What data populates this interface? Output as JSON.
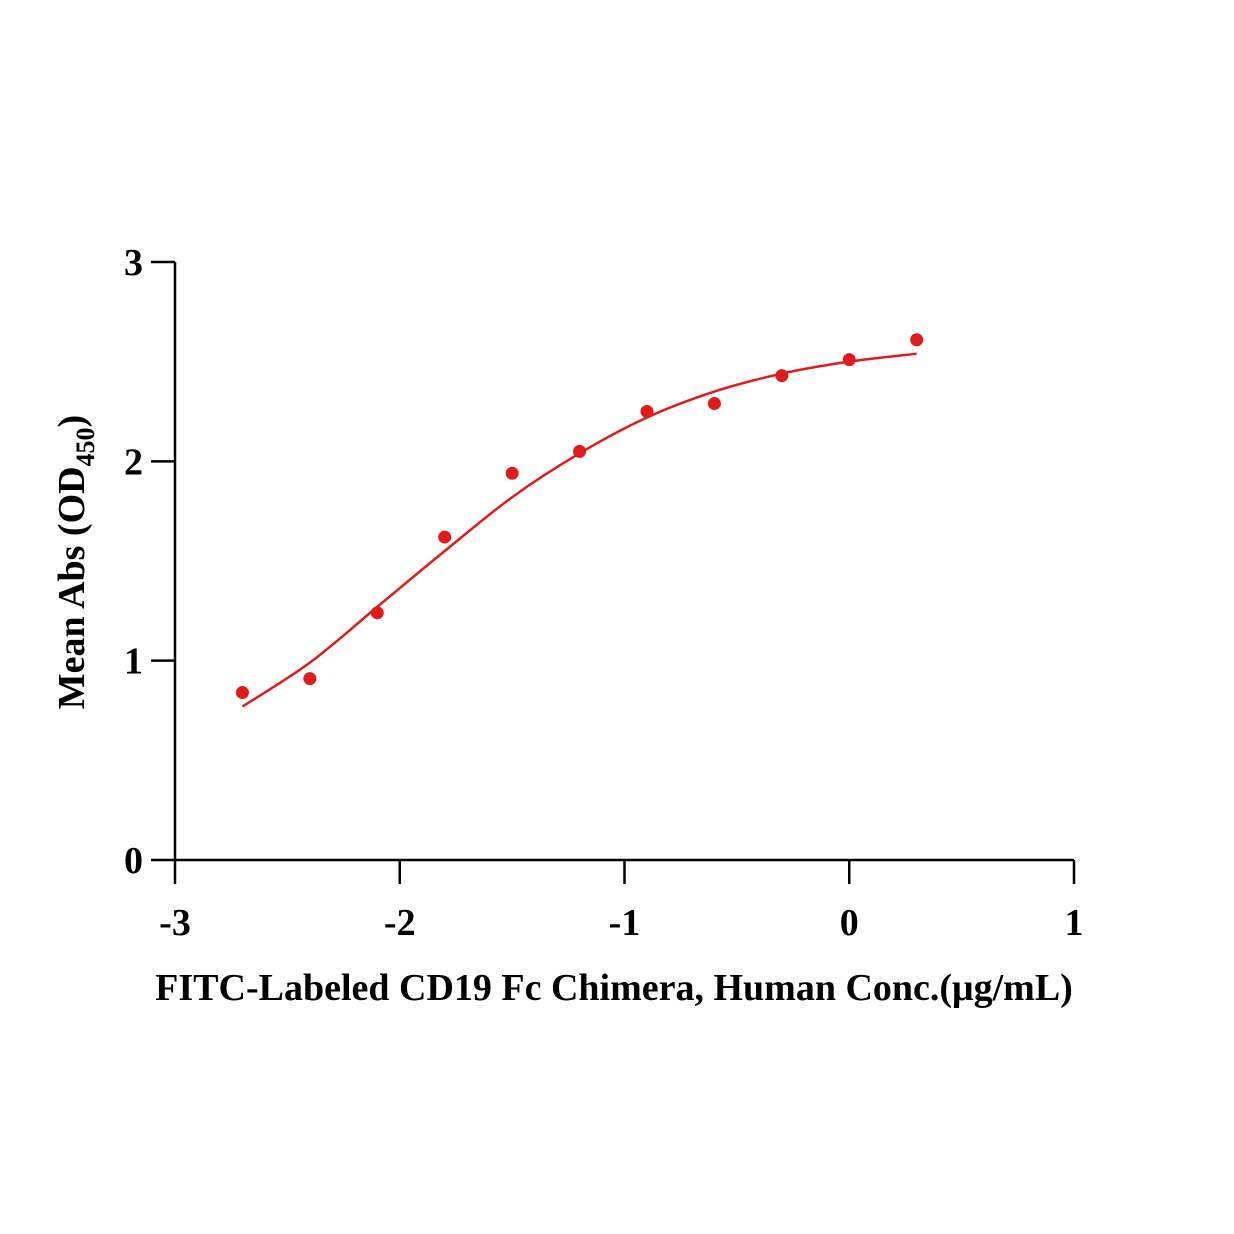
{
  "chart_data": {
    "type": "scatter",
    "title": "",
    "xlabel": "FITC-Labeled CD19 Fc Chimera, Human Conc.(μg/mL)",
    "ylabel": {
      "main": "Mean Abs (OD",
      "subscript": "450",
      "close": ")"
    },
    "xlim": [
      -3,
      1
    ],
    "ylim": [
      0,
      3
    ],
    "x_ticks": [
      -3,
      -2,
      -1,
      0,
      1
    ],
    "y_ticks": [
      0,
      1,
      2,
      3
    ],
    "x_tick_labels": [
      "-3",
      "-2",
      "-1",
      "0",
      "1"
    ],
    "y_tick_labels": [
      "0",
      "1",
      "2",
      "3"
    ],
    "grid": false,
    "legend": "none",
    "color": "#e31a1a",
    "series": [
      {
        "points": [
          {
            "x": -2.7,
            "y": 0.84
          },
          {
            "x": -2.4,
            "y": 0.91
          },
          {
            "x": -2.1,
            "y": 1.24
          },
          {
            "x": -1.8,
            "y": 1.62
          },
          {
            "x": -1.5,
            "y": 1.94
          },
          {
            "x": -1.2,
            "y": 2.05
          },
          {
            "x": -0.9,
            "y": 2.25
          },
          {
            "x": -0.6,
            "y": 2.29
          },
          {
            "x": -0.3,
            "y": 2.43
          },
          {
            "x": 0.0,
            "y": 2.51
          },
          {
            "x": 0.3,
            "y": 2.61
          }
        ],
        "fit_curve": [
          {
            "x": -2.7,
            "y": 0.77
          },
          {
            "x": -2.4,
            "y": 0.99
          },
          {
            "x": -2.1,
            "y": 1.27
          },
          {
            "x": -1.8,
            "y": 1.55
          },
          {
            "x": -1.5,
            "y": 1.82
          },
          {
            "x": -1.2,
            "y": 2.04
          },
          {
            "x": -0.9,
            "y": 2.22
          },
          {
            "x": -0.6,
            "y": 2.35
          },
          {
            "x": -0.3,
            "y": 2.44
          },
          {
            "x": 0.0,
            "y": 2.5
          },
          {
            "x": 0.3,
            "y": 2.54
          }
        ]
      }
    ]
  }
}
